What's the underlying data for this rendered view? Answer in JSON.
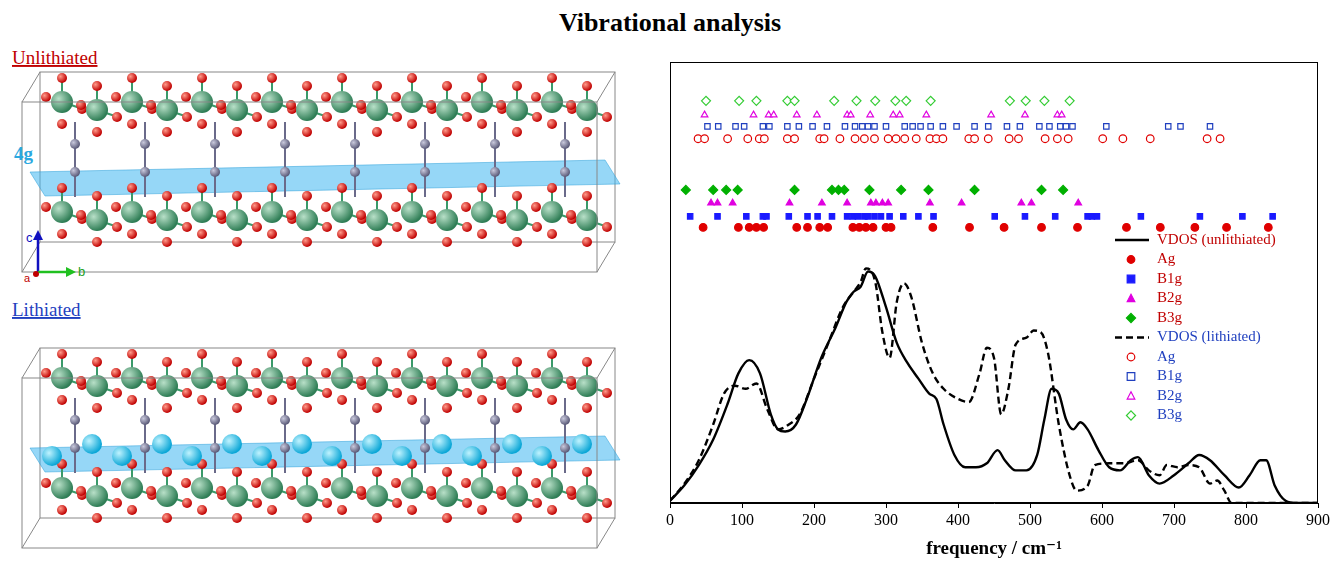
{
  "title": "Vibrational analysis",
  "structures": {
    "unlithiated_label": "Unlithiated",
    "lithiated_label": "Lithiated",
    "plane_label": "4g",
    "axes": [
      "c",
      "a",
      "b"
    ]
  },
  "chart_data": {
    "type": "scatter",
    "xlabel": "frequency / cm⁻¹",
    "xlim": [
      0,
      900
    ],
    "xticks": [
      0,
      100,
      200,
      300,
      400,
      500,
      600,
      700,
      800,
      900
    ],
    "ylim": [
      0,
      10
    ],
    "tick_labels": "x",
    "grid": false,
    "legend": "right",
    "series": [
      {
        "name": "VDOS (unlithiated)",
        "type": "line",
        "line_style": "solid",
        "color": "#000000",
        "x": [
          0,
          20,
          40,
          60,
          80,
          95,
          110,
          125,
          140,
          150,
          160,
          175,
          190,
          210,
          230,
          245,
          255,
          265,
          275,
          285,
          300,
          315,
          330,
          345,
          360,
          370,
          380,
          395,
          410,
          425,
          440,
          455,
          465,
          480,
          495,
          510,
          520,
          530,
          540,
          550,
          560,
          570,
          580,
          595,
          610,
          625,
          640,
          650,
          665,
          680,
          700,
          720,
          735,
          750,
          770,
          790,
          805,
          820,
          828,
          840,
          855,
          870,
          900
        ],
        "values": [
          0.05,
          0.4,
          0.86,
          1.44,
          2.25,
          2.94,
          3.24,
          2.94,
          2.01,
          1.67,
          1.62,
          1.78,
          2.36,
          3.29,
          3.98,
          4.56,
          4.79,
          4.91,
          5.25,
          5.14,
          4.44,
          3.63,
          3.17,
          2.82,
          2.48,
          2.36,
          1.78,
          1.09,
          0.81,
          0.81,
          0.9,
          1.2,
          0.97,
          0.74,
          0.74,
          1.09,
          1.9,
          2.59,
          2.48,
          1.9,
          1.67,
          1.83,
          1.67,
          1.2,
          0.81,
          0.74,
          0.97,
          1.04,
          0.63,
          0.44,
          0.63,
          0.9,
          1.09,
          0.97,
          0.63,
          0.35,
          0.63,
          0.97,
          0.97,
          0.39,
          0.05,
          0,
          0
        ]
      },
      {
        "name": "Ag",
        "type": "scatter",
        "marker": "circle",
        "color": "#e00000",
        "x": [
          46,
          95,
          110,
          120,
          130,
          176,
          191,
          208,
          219,
          254,
          263,
          272,
          282,
          300,
          307,
          365,
          416,
          464,
          516,
          566,
          634,
          681,
          729,
          773,
          831
        ],
        "values": [
          6.25,
          6.25,
          6.25,
          6.25,
          6.25,
          6.25,
          6.25,
          6.25,
          6.25,
          6.25,
          6.25,
          6.25,
          6.25,
          6.25,
          6.25,
          6.25,
          6.25,
          6.25,
          6.25,
          6.25,
          6.25,
          6.25,
          6.25,
          6.25,
          6.25
        ]
      },
      {
        "name": "B1g",
        "type": "scatter",
        "marker": "square",
        "color": "#1a1aff",
        "x": [
          28,
          66,
          106,
          129,
          134,
          165,
          191,
          205,
          225,
          246,
          254,
          261,
          270,
          275,
          284,
          293,
          305,
          324,
          345,
          366,
          451,
          493,
          535,
          580,
          586,
          593,
          654,
          736,
          795,
          837
        ],
        "values": [
          6.5,
          6.5,
          6.5,
          6.5,
          6.5,
          6.5,
          6.5,
          6.5,
          6.5,
          6.5,
          6.5,
          6.5,
          6.5,
          6.5,
          6.5,
          6.5,
          6.5,
          6.5,
          6.5,
          6.5,
          6.5,
          6.5,
          6.5,
          6.5,
          6.5,
          6.5,
          6.5,
          6.5,
          6.5,
          6.5
        ]
      },
      {
        "name": "B2g",
        "type": "scatter",
        "marker": "triangle",
        "color": "#e000e0",
        "x": [
          57,
          66,
          87,
          166,
          211,
          246,
          279,
          286,
          295,
          303,
          361,
          405,
          488,
          502,
          567
        ],
        "values": [
          6.8,
          6.8,
          6.8,
          6.8,
          6.8,
          6.8,
          6.8,
          6.8,
          6.8,
          6.8,
          6.8,
          6.8,
          6.8,
          6.8,
          6.8
        ]
      },
      {
        "name": "B3g",
        "type": "scatter",
        "marker": "diamond",
        "color": "#00b000",
        "x": [
          22,
          60,
          78,
          94,
          173,
          225,
          234,
          242,
          277,
          321,
          359,
          423,
          516,
          546
        ],
        "values": [
          7.1,
          7.1,
          7.1,
          7.1,
          7.1,
          7.1,
          7.1,
          7.1,
          7.1,
          7.1,
          7.1,
          7.1,
          7.1,
          7.1
        ]
      },
      {
        "name": "VDOS (lithiated)",
        "type": "line",
        "line_style": "dashed",
        "color": "#000000",
        "x": [
          0,
          20,
          40,
          60,
          75,
          90,
          105,
          120,
          135,
          150,
          165,
          180,
          200,
          220,
          240,
          255,
          265,
          272,
          285,
          295,
          305,
          315,
          325,
          335,
          350,
          365,
          380,
          400,
          415,
          430,
          440,
          450,
          460,
          470,
          480,
          495,
          505,
          515,
          525,
          540,
          555,
          565,
          580,
          590,
          610,
          630,
          650,
          665,
          680,
          690,
          705,
          720,
          735,
          750,
          760,
          770,
          780,
          900
        ],
        "values": [
          0.05,
          0.44,
          0.97,
          1.78,
          2.48,
          2.66,
          2.59,
          2.71,
          2.13,
          1.67,
          1.78,
          2.01,
          2.82,
          3.63,
          4.44,
          4.79,
          5.02,
          5.32,
          5.02,
          3.87,
          3.29,
          4.56,
          4.98,
          4.68,
          3.63,
          2.94,
          2.59,
          2.36,
          2.29,
          2.94,
          3.52,
          3.29,
          2.01,
          2.59,
          3.59,
          3.75,
          3.91,
          3.87,
          3.4,
          1.78,
          0.63,
          0.28,
          0.39,
          0.86,
          0.9,
          0.9,
          0.97,
          0.74,
          0.63,
          0.86,
          0.81,
          0.86,
          0.81,
          0.44,
          0.51,
          0.28,
          0,
          0
        ]
      },
      {
        "name": "Ag",
        "type": "scatter",
        "marker": "open-circle",
        "color": "#e00000",
        "x": [
          39,
          48,
          80,
          108,
          124,
          131,
          163,
          173,
          208,
          214,
          236,
          257,
          270,
          284,
          303,
          314,
          326,
          342,
          361,
          370,
          379,
          415,
          423,
          442,
          471,
          484,
          521,
          538,
          553,
          601,
          629,
          667,
          746,
          764
        ],
        "values": [
          8.26,
          8.26,
          8.26,
          8.26,
          8.26,
          8.26,
          8.26,
          8.26,
          8.26,
          8.26,
          8.26,
          8.26,
          8.26,
          8.26,
          8.26,
          8.26,
          8.26,
          8.26,
          8.26,
          8.26,
          8.26,
          8.26,
          8.26,
          8.26,
          8.26,
          8.26,
          8.26,
          8.26,
          8.26,
          8.26,
          8.26,
          8.26,
          8.26,
          8.26
        ]
      },
      {
        "name": "B1g",
        "type": "scatter",
        "marker": "open-square",
        "color": "#1f3fbf",
        "x": [
          52,
          67,
          91,
          103,
          129,
          138,
          163,
          179,
          198,
          218,
          243,
          257,
          267,
          275,
          284,
          300,
          326,
          337,
          348,
          362,
          379,
          398,
          423,
          442,
          468,
          486,
          513,
          527,
          542,
          550,
          559,
          606,
          692,
          709,
          750
        ],
        "values": [
          8.54,
          8.54,
          8.54,
          8.54,
          8.54,
          8.54,
          8.54,
          8.54,
          8.54,
          8.54,
          8.54,
          8.54,
          8.54,
          8.54,
          8.54,
          8.54,
          8.54,
          8.54,
          8.54,
          8.54,
          8.54,
          8.54,
          8.54,
          8.54,
          8.54,
          8.54,
          8.54,
          8.54,
          8.54,
          8.54,
          8.54,
          8.54,
          8.54,
          8.54,
          8.54
        ]
      },
      {
        "name": "B2g",
        "type": "scatter",
        "marker": "open-triangle",
        "color": "#e000e0",
        "x": [
          48,
          116,
          137,
          144,
          176,
          204,
          246,
          251,
          278,
          310,
          319,
          356,
          446,
          493,
          538,
          544
        ],
        "values": [
          8.8,
          8.8,
          8.8,
          8.8,
          8.8,
          8.8,
          8.8,
          8.8,
          8.8,
          8.8,
          8.8,
          8.8,
          8.8,
          8.8,
          8.8,
          8.8
        ]
      },
      {
        "name": "B3g",
        "type": "scatter",
        "marker": "open-diamond",
        "color": "#33cc33",
        "x": [
          50,
          96,
          120,
          163,
          173,
          228,
          259,
          285,
          313,
          328,
          362,
          472,
          494,
          520,
          555
        ],
        "values": [
          9.12,
          9.12,
          9.12,
          9.12,
          9.12,
          9.12,
          9.12,
          9.12,
          9.12,
          9.12,
          9.12,
          9.12,
          9.12,
          9.12,
          9.12
        ]
      }
    ]
  }
}
